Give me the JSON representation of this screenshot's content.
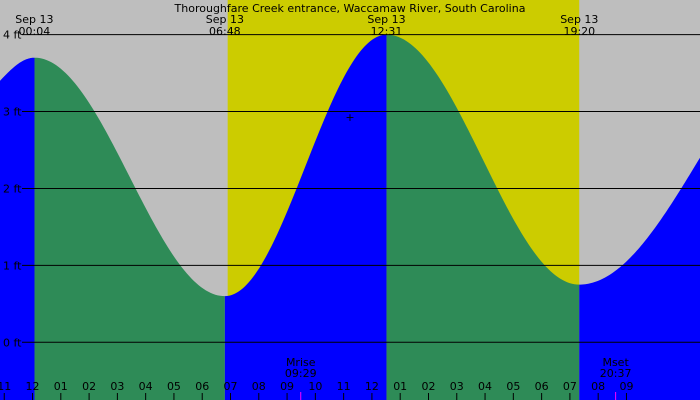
{
  "title": "Thoroughfare Creek entrance, Waccamaw River, South Carolina",
  "colors": {
    "night": "#bebebe",
    "day": "#cccc00",
    "falling_tide": "#2e8b57",
    "rising_tide": "#0000ff",
    "grid": "#000000",
    "moon_marker": "#ff00ff"
  },
  "events": [
    {
      "date": "Sep 13",
      "time": "00:04",
      "kind": "high"
    },
    {
      "date": "Sep 13",
      "time": "06:48",
      "kind": "low"
    },
    {
      "date": "Sep 13",
      "time": "12:31",
      "kind": "high"
    },
    {
      "date": "Sep 13",
      "time": "19:20",
      "kind": "low"
    }
  ],
  "moon_events": [
    {
      "label": "Mrise",
      "time": "09:29"
    },
    {
      "label": "Mset",
      "time": "20:37"
    }
  ],
  "chart_data": {
    "type": "area",
    "title": "Thoroughfare Creek entrance, Waccamaw River, South Carolina",
    "y_unit": "ft",
    "ylim": [
      -0.75,
      4.45
    ],
    "y_ticks": [
      {
        "value": 0,
        "label": "0 ft"
      },
      {
        "value": 1,
        "label": "1 ft"
      },
      {
        "value": 2,
        "label": "2 ft"
      },
      {
        "value": 3,
        "label": "3 ft"
      },
      {
        "value": 4,
        "label": "4 ft"
      }
    ],
    "x_range_hours": [
      -1.15,
      23.6
    ],
    "x_tick_labels": [
      "11",
      "12",
      "01",
      "02",
      "03",
      "04",
      "05",
      "06",
      "07",
      "08",
      "09",
      "10",
      "11",
      "12",
      "01",
      "02",
      "03",
      "04",
      "05",
      "06",
      "07",
      "08",
      "09"
    ],
    "x_tick_start_hour": -1,
    "daylight_hours": [
      6.9,
      19.33
    ],
    "extrema": [
      {
        "hour": 0.07,
        "height": 3.7,
        "kind": "high"
      },
      {
        "hour": 6.8,
        "height": 0.6,
        "kind": "low"
      },
      {
        "hour": 12.52,
        "height": 4.0,
        "kind": "high"
      },
      {
        "hour": 19.33,
        "height": 0.75,
        "kind": "low"
      }
    ],
    "boundary_heights": {
      "start": 3.4,
      "end": 2.4
    },
    "grid": true
  }
}
